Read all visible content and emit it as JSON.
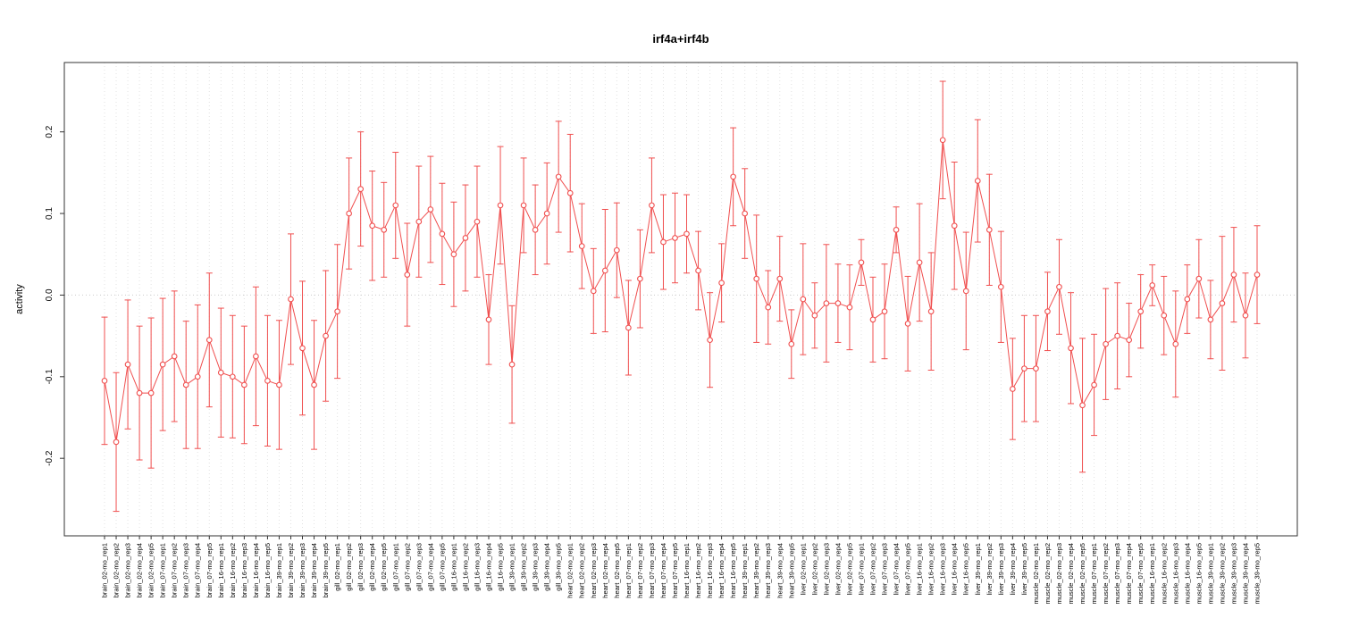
{
  "title": "irf4a+irf4b",
  "chart_data": {
    "type": "line",
    "title": "irf4a+irf4b",
    "xlabel": "",
    "ylabel": "activity",
    "ylim": [
      -0.295,
      0.285
    ],
    "yticks": [
      -0.2,
      -0.1,
      0.0,
      0.1,
      0.2
    ],
    "ytick_labels": [
      "-0.2",
      "-0.1",
      "0.0",
      "0.1",
      "0.2"
    ],
    "grid": "vertical-dotted-per-category",
    "zero_line": true,
    "legend_position": "none",
    "point_style": "open-circle",
    "error_bars": true,
    "colors": {
      "series": "#f04f4f",
      "point_fill": "#ffffff",
      "grid": "#e2e2e2",
      "zero_line": "#cccccc",
      "axis": "#333333"
    },
    "categories": [
      "brain_02-mo_rep1",
      "brain_02-mo_rep2",
      "brain_02-mo_rep3",
      "brain_02-mo_rep4",
      "brain_02-mo_rep5",
      "brain_07-mo_rep1",
      "brain_07-mo_rep2",
      "brain_07-mo_rep3",
      "brain_07-mo_rep4",
      "brain_07-mo_rep5",
      "brain_16-mo_rep1",
      "brain_16-mo_rep2",
      "brain_16-mo_rep3",
      "brain_16-mo_rep4",
      "brain_16-mo_rep5",
      "brain_39-mo_rep1",
      "brain_39-mo_rep2",
      "brain_39-mo_rep3",
      "brain_39-mo_rep4",
      "brain_39-mo_rep5",
      "gill_02-mo_rep1",
      "gill_02-mo_rep2",
      "gill_02-mo_rep3",
      "gill_02-mo_rep4",
      "gill_02-mo_rep5",
      "gill_07-mo_rep1",
      "gill_07-mo_rep2",
      "gill_07-mo_rep3",
      "gill_07-mo_rep4",
      "gill_07-mo_rep5",
      "gill_16-mo_rep1",
      "gill_16-mo_rep2",
      "gill_16-mo_rep3",
      "gill_16-mo_rep4",
      "gill_16-mo_rep5",
      "gill_39-mo_rep1",
      "gill_39-mo_rep2",
      "gill_39-mo_rep3",
      "gill_39-mo_rep4",
      "gill_39-mo_rep5",
      "heart_02-mo_rep1",
      "heart_02-mo_rep2",
      "heart_02-mo_rep3",
      "heart_02-mo_rep4",
      "heart_02-mo_rep5",
      "heart_07-mo_rep1",
      "heart_07-mo_rep2",
      "heart_07-mo_rep3",
      "heart_07-mo_rep4",
      "heart_07-mo_rep5",
      "heart_16-mo_rep1",
      "heart_16-mo_rep2",
      "heart_16-mo_rep3",
      "heart_16-mo_rep4",
      "heart_16-mo_rep5",
      "heart_39-mo_rep1",
      "heart_39-mo_rep2",
      "heart_39-mo_rep3",
      "heart_39-mo_rep4",
      "heart_39-mo_rep5",
      "liver_02-mo_rep1",
      "liver_02-mo_rep2",
      "liver_02-mo_rep3",
      "liver_02-mo_rep4",
      "liver_02-mo_rep5",
      "liver_07-mo_rep1",
      "liver_07-mo_rep2",
      "liver_07-mo_rep3",
      "liver_07-mo_rep4",
      "liver_07-mo_rep5",
      "liver_16-mo_rep1",
      "liver_16-mo_rep2",
      "liver_16-mo_rep3",
      "liver_16-mo_rep4",
      "liver_16-mo_rep5",
      "liver_39-mo_rep1",
      "liver_39-mo_rep2",
      "liver_39-mo_rep3",
      "liver_39-mo_rep4",
      "liver_39-mo_rep5",
      "muscle_02-mo_rep1",
      "muscle_02-mo_rep2",
      "muscle_02-mo_rep3",
      "muscle_02-mo_rep4",
      "muscle_02-mo_rep5",
      "muscle_07-mo_rep1",
      "muscle_07-mo_rep2",
      "muscle_07-mo_rep3",
      "muscle_07-mo_rep4",
      "muscle_07-mo_rep5",
      "muscle_16-mo_rep1",
      "muscle_16-mo_rep2",
      "muscle_16-mo_rep3",
      "muscle_16-mo_rep4",
      "muscle_16-mo_rep5",
      "muscle_39-mo_rep1",
      "muscle_39-mo_rep2",
      "muscle_39-mo_rep3",
      "muscle_39-mo_rep4",
      "muscle_39-mo_rep5"
    ],
    "values": [
      -0.105,
      -0.18,
      -0.085,
      -0.12,
      -0.12,
      -0.085,
      -0.075,
      -0.11,
      -0.1,
      -0.055,
      -0.095,
      -0.1,
      -0.11,
      -0.075,
      -0.105,
      -0.11,
      -0.005,
      -0.065,
      -0.11,
      -0.05,
      -0.02,
      0.1,
      0.13,
      0.085,
      0.08,
      0.11,
      0.025,
      0.09,
      0.105,
      0.075,
      0.05,
      0.07,
      0.09,
      -0.03,
      0.11,
      -0.085,
      0.11,
      0.08,
      0.1,
      0.145,
      0.125,
      0.06,
      0.005,
      0.03,
      0.055,
      -0.04,
      0.02,
      0.11,
      0.065,
      0.07,
      0.075,
      0.03,
      -0.055,
      0.015,
      0.145,
      0.1,
      0.02,
      -0.015,
      0.02,
      -0.06,
      -0.005,
      -0.025,
      -0.01,
      -0.01,
      -0.015,
      0.04,
      -0.03,
      -0.02,
      0.08,
      -0.035,
      0.04,
      -0.02,
      0.19,
      0.085,
      0.005,
      0.14,
      0.08,
      0.01,
      -0.115,
      -0.09,
      -0.09,
      -0.02,
      0.01,
      -0.065,
      -0.135,
      -0.11,
      -0.06,
      -0.05,
      -0.055,
      -0.02,
      0.012,
      -0.025,
      -0.06,
      -0.005,
      0.02,
      -0.03,
      -0.01,
      0.025,
      -0.025,
      0.025
    ],
    "errors": [
      0.078,
      0.085,
      0.079,
      0.082,
      0.092,
      0.081,
      0.08,
      0.078,
      0.088,
      0.082,
      0.079,
      0.075,
      0.072,
      0.085,
      0.08,
      0.079,
      0.08,
      0.082,
      0.079,
      0.08,
      0.082,
      0.068,
      0.07,
      0.067,
      0.058,
      0.065,
      0.063,
      0.068,
      0.065,
      0.062,
      0.064,
      0.065,
      0.068,
      0.055,
      0.072,
      0.072,
      0.058,
      0.055,
      0.062,
      0.068,
      0.072,
      0.052,
      0.052,
      0.075,
      0.058,
      0.058,
      0.06,
      0.058,
      0.058,
      0.055,
      0.048,
      0.048,
      0.058,
      0.048,
      0.06,
      0.055,
      0.078,
      0.045,
      0.052,
      0.042,
      0.068,
      0.04,
      0.072,
      0.048,
      0.052,
      0.028,
      0.052,
      0.058,
      0.028,
      0.058,
      0.072,
      0.072,
      0.072,
      0.078,
      0.072,
      0.075,
      0.068,
      0.068,
      0.062,
      0.065,
      0.065,
      0.048,
      0.058,
      0.068,
      0.082,
      0.062,
      0.068,
      0.065,
      0.045,
      0.045,
      0.025,
      0.048,
      0.065,
      0.042,
      0.048,
      0.048,
      0.082,
      0.058,
      0.052,
      0.06
    ]
  }
}
